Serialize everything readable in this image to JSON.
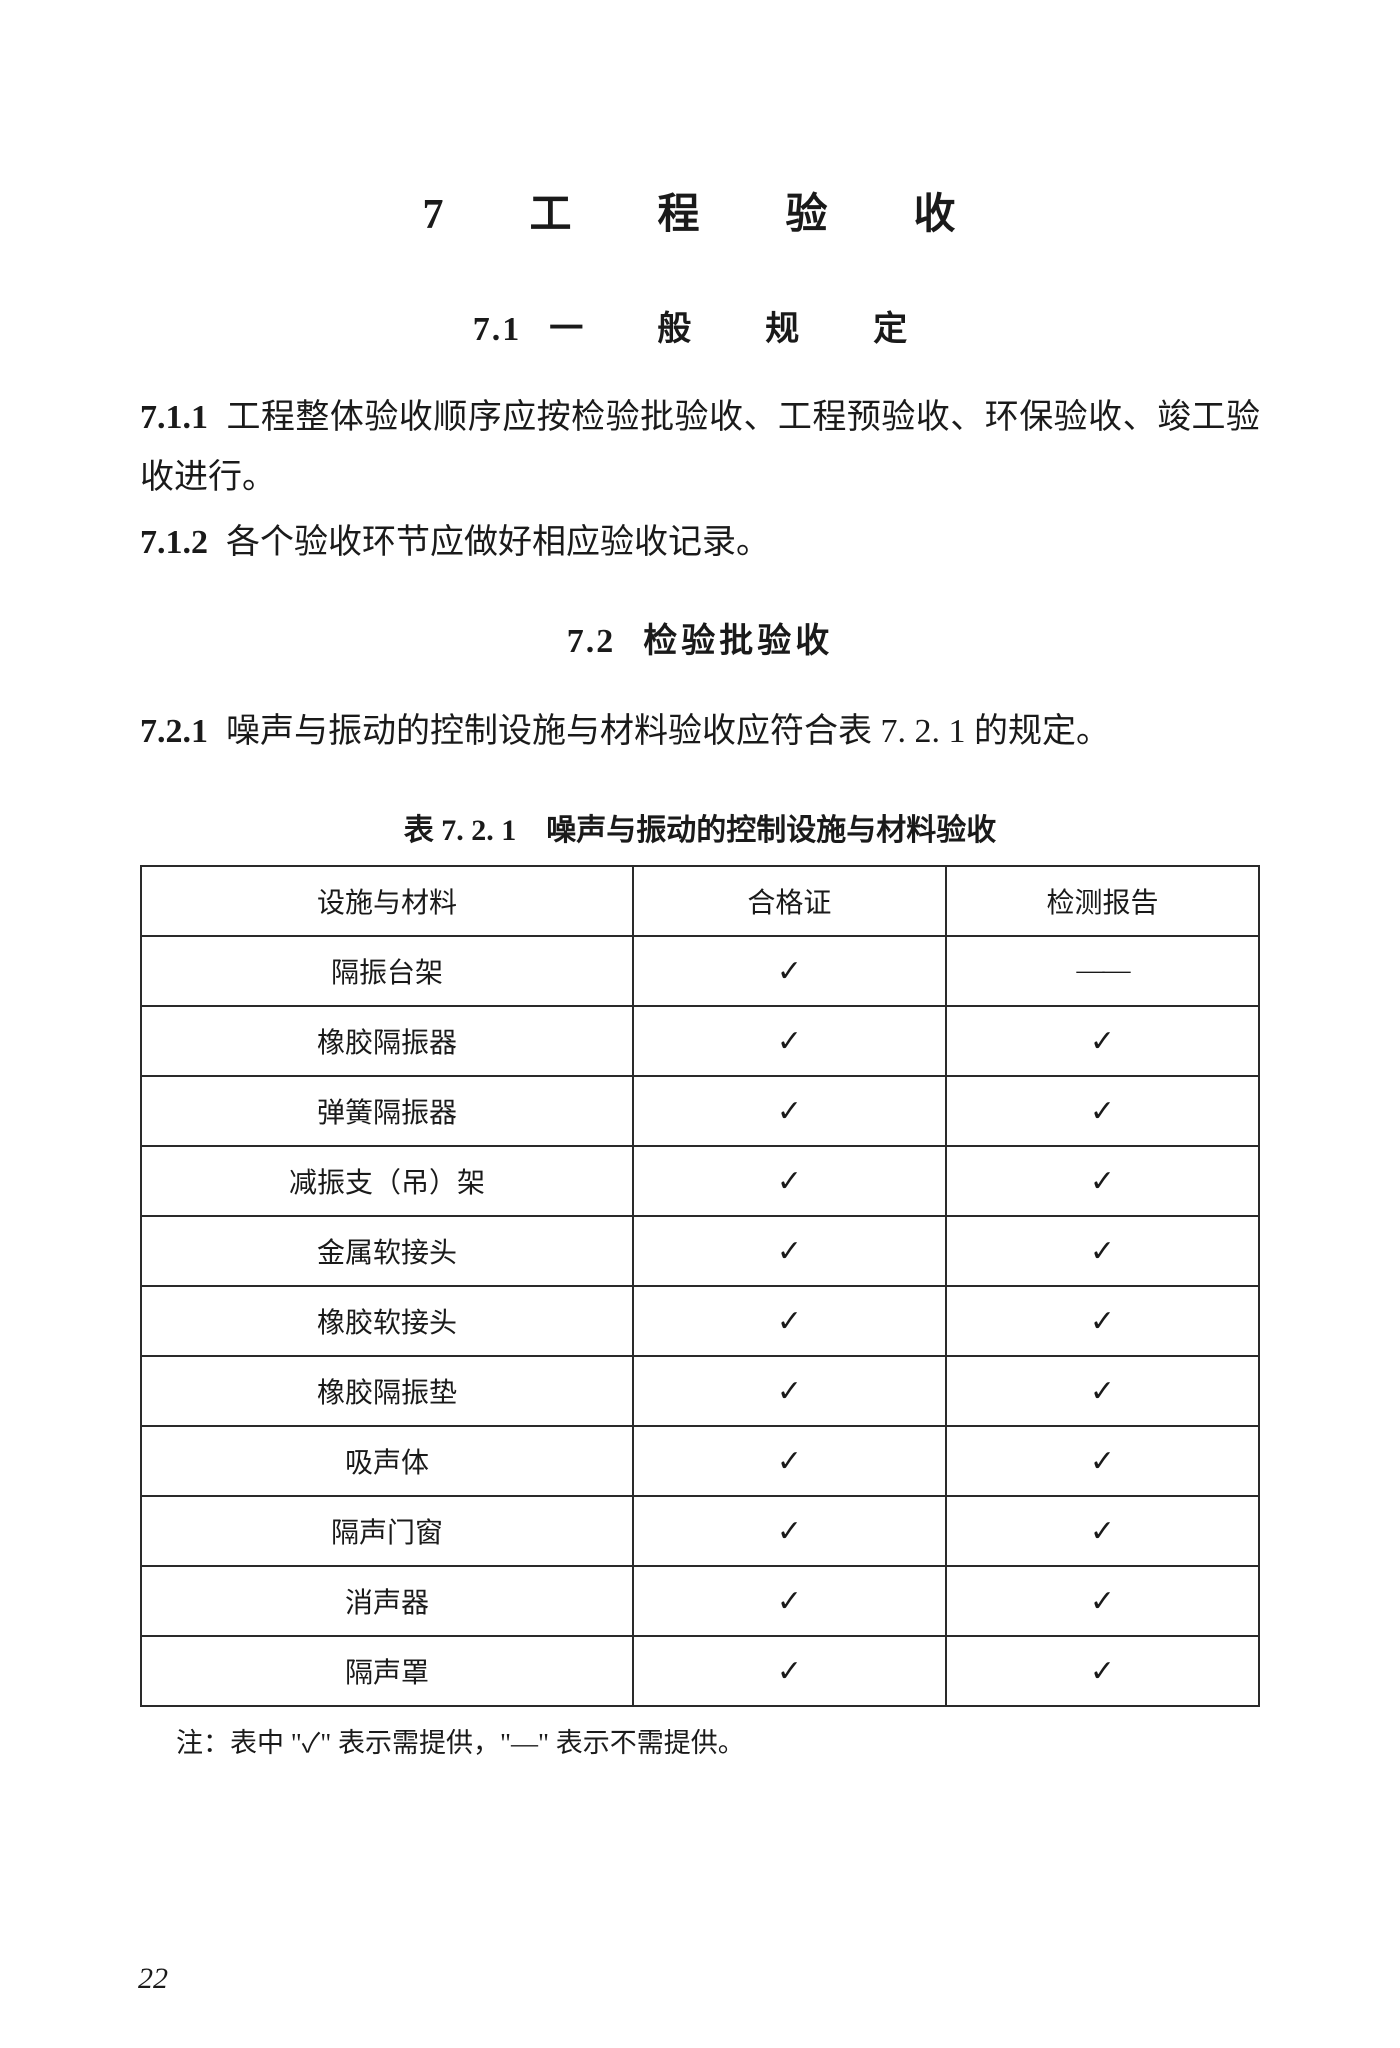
{
  "chapter": {
    "number": "7",
    "title": "工　程　验　收"
  },
  "section_1": {
    "heading_num": "7.1",
    "heading_txt": "一　般　规　定",
    "clauses": [
      {
        "num": "7.1.1",
        "text": "工程整体验收顺序应按检验批验收、工程预验收、环保验收、竣工验收进行。"
      },
      {
        "num": "7.1.2",
        "text": "各个验收环节应做好相应验收记录。"
      }
    ]
  },
  "section_2": {
    "heading_num": "7.2",
    "heading_txt": "检验批验收",
    "clauses": [
      {
        "num": "7.2.1",
        "text": "噪声与振动的控制设施与材料验收应符合表 7. 2. 1 的规定。"
      }
    ]
  },
  "table": {
    "caption": "表 7. 2. 1　噪声与振动的控制设施与材料验收",
    "columns": [
      "设施与材料",
      "合格证",
      "检测报告"
    ],
    "col_widths": [
      "44%",
      "28%",
      "28%"
    ],
    "rows": [
      [
        "隔振台架",
        "✓",
        "—"
      ],
      [
        "橡胶隔振器",
        "✓",
        "✓"
      ],
      [
        "弹簧隔振器",
        "✓",
        "✓"
      ],
      [
        "减振支（吊）架",
        "✓",
        "✓"
      ],
      [
        "金属软接头",
        "✓",
        "✓"
      ],
      [
        "橡胶软接头",
        "✓",
        "✓"
      ],
      [
        "橡胶隔振垫",
        "✓",
        "✓"
      ],
      [
        "吸声体",
        "✓",
        "✓"
      ],
      [
        "隔声门窗",
        "✓",
        "✓"
      ],
      [
        "消声器",
        "✓",
        "✓"
      ],
      [
        "隔声罩",
        "✓",
        "✓"
      ]
    ],
    "note": "注：表中 \"✓\" 表示需提供，\"—\" 表示不需提供。",
    "check_glyph": "✓",
    "dash_glyph": "——",
    "border_color": "#2a2a2a",
    "cell_fontsize": 28
  },
  "page_number": "22",
  "colors": {
    "text": "#1a1a1a",
    "background": "#ffffff"
  },
  "typography": {
    "body_fontsize": 34,
    "caption_fontsize": 30,
    "note_fontsize": 27,
    "font_family": "SimSun"
  }
}
